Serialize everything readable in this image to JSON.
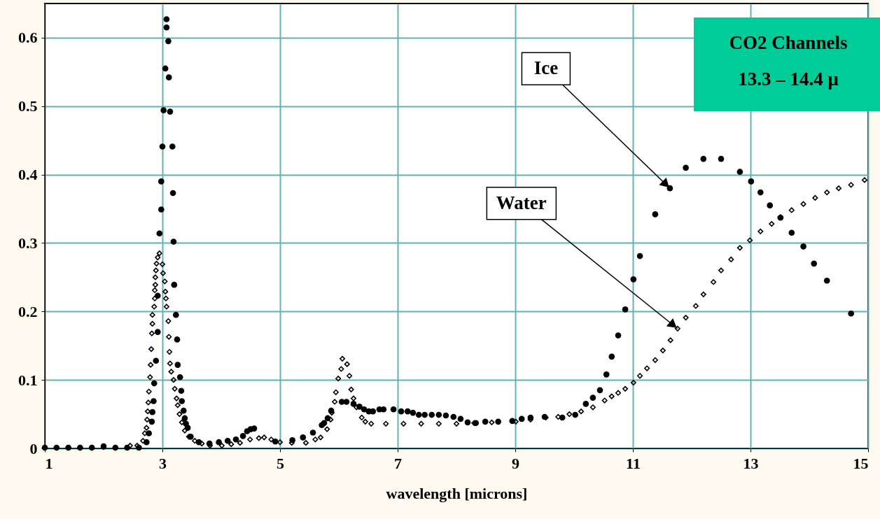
{
  "chart_data": {
    "type": "scatter",
    "xlabel": "wavelength [microns]",
    "xlim": [
      1,
      15
    ],
    "ylim": [
      0,
      0.65
    ],
    "xticks": [
      1,
      3,
      5,
      7,
      9,
      11,
      13,
      15
    ],
    "yticks": [
      0,
      0.1,
      0.2,
      0.3,
      0.4,
      0.5,
      0.6
    ],
    "grid": true,
    "series": [
      {
        "color": "#000000",
        "marker": "circle",
        "x": [
          1.0,
          1.2,
          1.4,
          1.6,
          1.8,
          2.0,
          2.2,
          2.4,
          2.6,
          2.73,
          2.77,
          2.82,
          2.83,
          2.85,
          2.86,
          2.89,
          2.92,
          2.92,
          2.95,
          2.98,
          2.98,
          3.0,
          3.02,
          3.05,
          3.07,
          3.07,
          3.1,
          3.11,
          3.13,
          3.17,
          3.18,
          3.19,
          3.2,
          3.23,
          3.25,
          3.26,
          3.3,
          3.32,
          3.33,
          3.36,
          3.38,
          3.4,
          3.43,
          3.48,
          3.62,
          3.8,
          3.96,
          4.11,
          4.25,
          4.37,
          4.44,
          4.5,
          4.56,
          4.92,
          5.21,
          5.39,
          5.56,
          5.71,
          5.75,
          5.81,
          5.87,
          6.05,
          6.13,
          6.25,
          6.35,
          6.43,
          6.51,
          6.58,
          6.69,
          6.76,
          6.93,
          7.06,
          7.17,
          7.26,
          7.36,
          7.46,
          7.58,
          7.7,
          7.82,
          7.95,
          8.07,
          8.19,
          8.33,
          8.49,
          8.71,
          8.95,
          9.11,
          9.26,
          9.5,
          9.8,
          10.02,
          10.2,
          10.32,
          10.44,
          10.55,
          10.64,
          10.75,
          10.87,
          11.01,
          11.12,
          11.38,
          11.63,
          11.9,
          12.2,
          12.5,
          12.82,
          13.01,
          13.17,
          13.33,
          13.51,
          13.7,
          13.9,
          14.08,
          14.3,
          14.71
        ],
        "values": [
          0.001,
          0.001,
          0.001,
          0.001,
          0.001,
          0.003,
          0.001,
          0.001,
          0.001,
          0.009,
          0.022,
          0.039,
          0.053,
          0.069,
          0.095,
          0.128,
          0.17,
          0.223,
          0.314,
          0.349,
          0.39,
          0.441,
          0.494,
          0.555,
          0.627,
          0.615,
          0.595,
          0.542,
          0.492,
          0.441,
          0.373,
          0.302,
          0.239,
          0.195,
          0.159,
          0.122,
          0.104,
          0.084,
          0.069,
          0.055,
          0.044,
          0.036,
          0.03,
          0.017,
          0.009,
          0.007,
          0.009,
          0.011,
          0.013,
          0.018,
          0.025,
          0.028,
          0.029,
          0.01,
          0.012,
          0.016,
          0.023,
          0.034,
          0.037,
          0.044,
          0.055,
          0.068,
          0.068,
          0.065,
          0.061,
          0.057,
          0.054,
          0.054,
          0.057,
          0.057,
          0.057,
          0.054,
          0.054,
          0.052,
          0.049,
          0.049,
          0.049,
          0.049,
          0.048,
          0.046,
          0.043,
          0.038,
          0.037,
          0.039,
          0.039,
          0.04,
          0.043,
          0.045,
          0.046,
          0.045,
          0.049,
          0.065,
          0.074,
          0.085,
          0.108,
          0.134,
          0.165,
          0.203,
          0.247,
          0.281,
          0.342,
          0.38,
          0.41,
          0.423,
          0.423,
          0.404,
          0.39,
          0.374,
          0.355,
          0.337,
          0.315,
          0.295,
          0.27,
          0.245,
          0.197
        ]
      },
      {
        "color": "#000000",
        "marker": "diamond",
        "x": [
          1.0,
          1.2,
          1.4,
          1.6,
          1.8,
          2.0,
          2.2,
          2.45,
          2.57,
          2.67,
          2.7,
          2.73,
          2.74,
          2.75,
          2.76,
          2.77,
          2.79,
          2.8,
          2.81,
          2.82,
          2.83,
          2.83,
          2.86,
          2.87,
          2.87,
          2.88,
          2.88,
          2.89,
          2.9,
          2.92,
          2.95,
          3.0,
          3.01,
          3.04,
          3.05,
          3.06,
          3.07,
          3.1,
          3.11,
          3.12,
          3.13,
          3.15,
          3.19,
          3.21,
          3.24,
          3.26,
          3.29,
          3.33,
          3.38,
          3.45,
          3.55,
          3.67,
          3.81,
          4.01,
          4.17,
          4.32,
          4.49,
          4.64,
          4.73,
          4.85,
          5.0,
          5.2,
          5.44,
          5.6,
          5.69,
          5.8,
          5.86,
          5.88,
          5.93,
          5.95,
          5.99,
          6.04,
          6.06,
          6.14,
          6.18,
          6.21,
          6.25,
          6.3,
          6.39,
          6.45,
          6.55,
          6.8,
          7.1,
          7.4,
          7.7,
          8.0,
          8.3,
          8.6,
          9.01,
          9.26,
          9.52,
          9.73,
          9.92,
          10.12,
          10.32,
          10.52,
          10.64,
          10.75,
          10.87,
          11.01,
          11.12,
          11.24,
          11.38,
          11.51,
          11.64,
          11.76,
          11.9,
          12.07,
          12.2,
          12.37,
          12.5,
          12.67,
          12.82,
          12.99,
          13.17,
          13.36,
          13.51,
          13.7,
          13.9,
          14.1,
          14.3,
          14.5,
          14.71,
          14.94
        ],
        "values": [
          0.001,
          0.001,
          0.001,
          0.001,
          0.001,
          0.002,
          0.001,
          0.004,
          0.004,
          0.011,
          0.022,
          0.03,
          0.042,
          0.054,
          0.067,
          0.083,
          0.104,
          0.122,
          0.145,
          0.168,
          0.182,
          0.195,
          0.207,
          0.219,
          0.231,
          0.239,
          0.25,
          0.26,
          0.27,
          0.279,
          0.285,
          0.269,
          0.256,
          0.244,
          0.229,
          0.219,
          0.207,
          0.186,
          0.163,
          0.141,
          0.124,
          0.112,
          0.1,
          0.087,
          0.073,
          0.063,
          0.05,
          0.038,
          0.026,
          0.017,
          0.011,
          0.007,
          0.004,
          0.004,
          0.006,
          0.008,
          0.013,
          0.015,
          0.016,
          0.013,
          0.009,
          0.008,
          0.008,
          0.013,
          0.016,
          0.028,
          0.042,
          0.052,
          0.068,
          0.082,
          0.102,
          0.116,
          0.131,
          0.123,
          0.106,
          0.086,
          0.073,
          0.06,
          0.045,
          0.039,
          0.036,
          0.036,
          0.036,
          0.036,
          0.036,
          0.036,
          0.037,
          0.038,
          0.039,
          0.042,
          0.045,
          0.046,
          0.05,
          0.054,
          0.06,
          0.07,
          0.076,
          0.081,
          0.087,
          0.096,
          0.106,
          0.117,
          0.129,
          0.143,
          0.158,
          0.175,
          0.191,
          0.208,
          0.225,
          0.243,
          0.26,
          0.276,
          0.293,
          0.304,
          0.317,
          0.328,
          0.338,
          0.348,
          0.357,
          0.366,
          0.374,
          0.38,
          0.385,
          0.392
        ]
      }
    ],
    "annotations": [
      {
        "text": "Ice",
        "x": 11.63,
        "y": 0.38
      },
      {
        "text": "Water",
        "x": 11.76,
        "y": 0.175
      },
      "CO2  Channels",
      "13.3 – 14.4   μ"
    ]
  }
}
